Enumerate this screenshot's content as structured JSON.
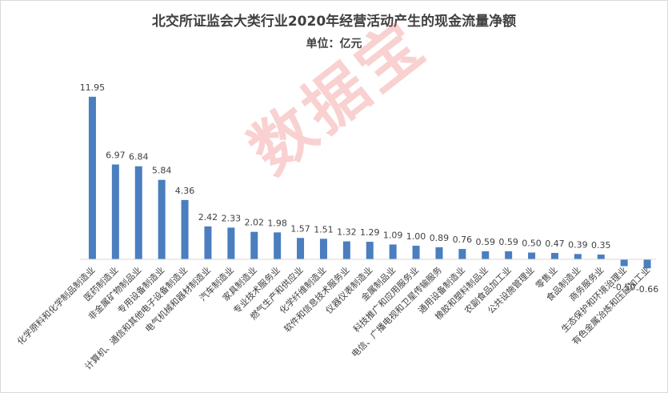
{
  "title": "北交所证监会大类行业2020年经营活动产生的现金流量净额",
  "subtitle": "单位：亿元",
  "watermark": "数据宝",
  "colors": {
    "bar": "#4a7ebf",
    "text": "#404040",
    "axis": "#d9d9d9"
  },
  "chart_data": {
    "type": "bar",
    "title": "北交所证监会大类行业2020年经营活动产生的现金流量净额",
    "subtitle": "单位：亿元",
    "unit": "亿元",
    "grid": false,
    "legend": "none",
    "categories": [
      "化学原料和化学制品制造业",
      "医药制造业",
      "非金属矿物制品业",
      "专用设备制造业",
      "计算机、通信和其他电子设备制造业",
      "电气机械和器材制造业",
      "汽车制造业",
      "家具制造业",
      "专业技术服务业",
      "燃气生产和供应业",
      "化学纤维制造业",
      "软件和信息技术服务业",
      "仪器仪表制造业",
      "金属制品业",
      "科技推广和应用服务业",
      "电信、广播电视和卫星传输服务",
      "通用设备制造业",
      "橡胶和塑料制品业",
      "农副食品加工业",
      "公共设施管理业",
      "零售业",
      "食品制造业",
      "商务服务业",
      "生态保护和环境治理业",
      "有色金属冶炼和压延加工业"
    ],
    "values": [
      11.95,
      6.97,
      6.84,
      5.84,
      4.36,
      2.42,
      2.33,
      2.02,
      1.98,
      1.57,
      1.51,
      1.32,
      1.29,
      1.09,
      1.0,
      0.89,
      0.76,
      0.59,
      0.59,
      0.5,
      0.47,
      0.39,
      0.35,
      -0.5,
      -0.66
    ],
    "value_labels": [
      "11.95",
      "6.97",
      "6.84",
      "5.84",
      "4.36",
      "2.42",
      "2.33",
      "2.02",
      "1.98",
      "1.57",
      "1.51",
      "1.32",
      "1.29",
      "1.09",
      "1.00",
      "0.89",
      "0.76",
      "0.59",
      "0.59",
      "0.50",
      "0.47",
      "0.39",
      "0.35",
      "-0.50",
      "-0.66"
    ]
  }
}
